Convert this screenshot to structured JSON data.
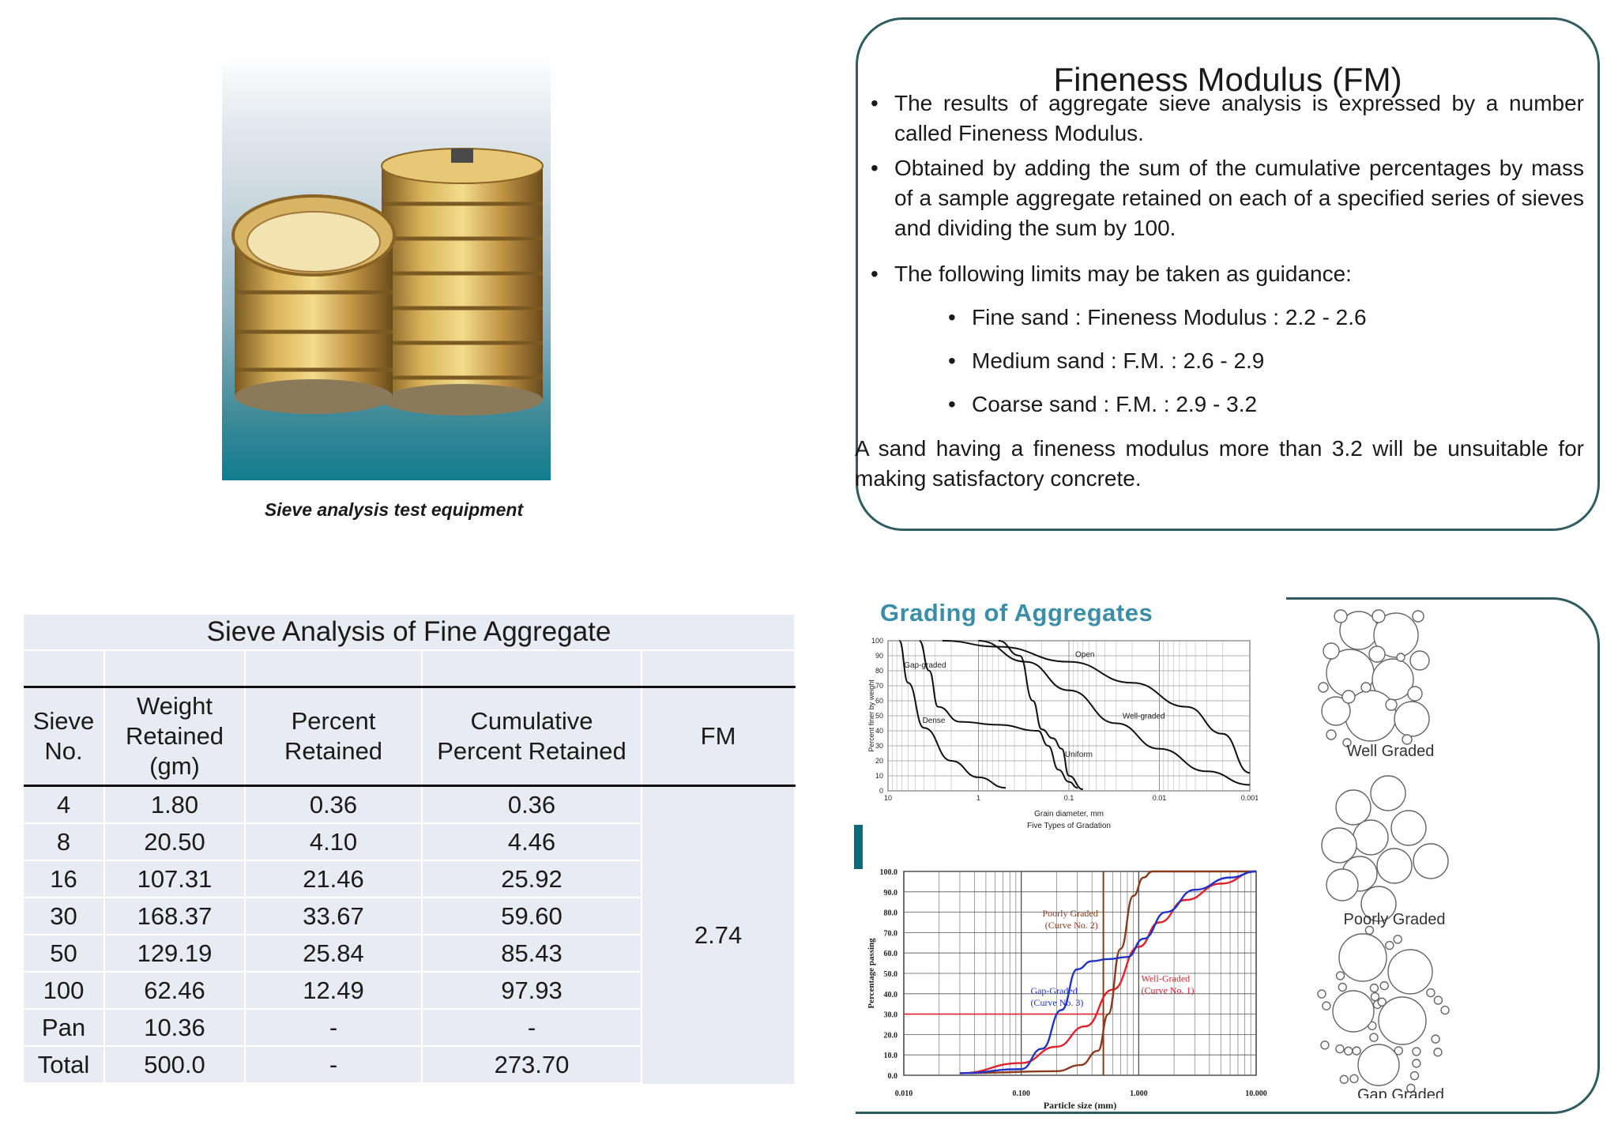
{
  "photo": {
    "caption": "Sieve analysis test equipment"
  },
  "fm": {
    "title": "Fineness Modulus (FM)",
    "bullets": [
      "The results of  aggregate sieve   analysis  is expressed   by   a number called Fineness Modulus.",
      "Obtained by adding the sum of the cumulative percentages by mass of a sample aggregate retained on  each of a specified series of sieves and dividing the sum  by 100.",
      "The following limits may be taken as guidance:"
    ],
    "limits": [
      "Fine sand : Fineness Modulus : 2.2 - 2.6",
      "Medium sand : F.M. : 2.6 - 2.9",
      "Coarse sand : F.M. : 2.9 - 3.2"
    ],
    "note": "A sand having a fineness modulus more than 3.2 will be  unsuitable for making satisfactory concrete."
  },
  "table": {
    "title": "Sieve Analysis of Fine Aggregate",
    "headers": {
      "sieve_1": "Sieve",
      "sieve_2": "No.",
      "weight_1": "Weight",
      "weight_2": "Retained",
      "weight_3": "(gm)",
      "percent_1": "Percent",
      "percent_2": "Retained",
      "cum_1": "Cumulative",
      "cum_2": "Percent Retained",
      "fm": "FM"
    },
    "rows": [
      {
        "sieve": "4",
        "weight": "1.80",
        "percent": "0.36",
        "cumulative": "0.36"
      },
      {
        "sieve": "8",
        "weight": "20.50",
        "percent": "4.10",
        "cumulative": "4.46"
      },
      {
        "sieve": "16",
        "weight": "107.31",
        "percent": "21.46",
        "cumulative": "25.92"
      },
      {
        "sieve": "30",
        "weight": "168.37",
        "percent": "33.67",
        "cumulative": "59.60"
      },
      {
        "sieve": "50",
        "weight": "129.19",
        "percent": "25.84",
        "cumulative": "85.43"
      },
      {
        "sieve": "100",
        "weight": "62.46",
        "percent": "12.49",
        "cumulative": "97.93"
      },
      {
        "sieve": "Pan",
        "weight": "10.36",
        "percent": "-",
        "cumulative": "-"
      },
      {
        "sieve": "Total",
        "weight": "500.0",
        "percent": "-",
        "cumulative": "273.70"
      }
    ],
    "fm_value": "2.74"
  },
  "grading": {
    "title": "Grading of Aggregates",
    "figure_labels": [
      "Well Graded",
      "Poorly Graded",
      "Gap Graded"
    ]
  },
  "chart_data": [
    {
      "type": "line",
      "title": "Five Types of Gradation",
      "xlabel": "Grain diameter, mm",
      "ylabel": "Percent finer by weight",
      "x_scale": "log",
      "x_reversed": true,
      "xlim": [
        10,
        0.001
      ],
      "ylim": [
        0,
        100
      ],
      "x_ticks": [
        "10",
        "1",
        "0.1",
        "0.01",
        "0.001"
      ],
      "y_ticks": [
        "0",
        "10",
        "20",
        "30",
        "40",
        "50",
        "60",
        "70",
        "80",
        "90",
        "100"
      ],
      "grid": true,
      "series": [
        {
          "name": "Open",
          "x": [
            2.5,
            0.6,
            0.1,
            0.02,
            0.005,
            0.002,
            0.001
          ],
          "y": [
            100,
            96,
            86,
            72,
            56,
            38,
            12
          ]
        },
        {
          "name": "Well-graded",
          "x": [
            1.0,
            0.3,
            0.1,
            0.03,
            0.01,
            0.003,
            0.001
          ],
          "y": [
            100,
            86,
            67,
            45,
            28,
            13,
            4
          ]
        },
        {
          "name": "Uniform",
          "x": [
            0.6,
            0.35,
            0.25,
            0.2,
            0.15,
            0.12,
            0.1,
            0.07
          ],
          "y": [
            100,
            90,
            60,
            41,
            35,
            28,
            10,
            1
          ]
        },
        {
          "name": "Gap-graded",
          "x": [
            4.5,
            3.5,
            2.8,
            1.6,
            0.6,
            0.22,
            0.17,
            0.13,
            0.1,
            0.08
          ],
          "y": [
            100,
            80,
            56,
            46,
            44,
            40,
            30,
            14,
            6,
            2
          ]
        },
        {
          "name": "Dense",
          "x": [
            7.5,
            6.0,
            4.0,
            2.0,
            1.0,
            0.5
          ],
          "y": [
            100,
            72,
            42,
            20,
            9,
            2
          ]
        }
      ]
    },
    {
      "type": "line",
      "xlabel": "Particle size (mm)",
      "ylabel": "Percentage passing",
      "x_scale": "log",
      "xlim": [
        0.01,
        10
      ],
      "ylim": [
        0,
        100
      ],
      "x_ticks": [
        "0.010",
        "0.100",
        "1.000",
        "10.000"
      ],
      "y_ticks": [
        "0.0",
        "10.0",
        "20.0",
        "30.0",
        "40.0",
        "50.0",
        "60.0",
        "70.0",
        "80.0",
        "90.0",
        "100.0"
      ],
      "grid": true,
      "annotations": [
        "Poorly Graded (Curve No. 2)",
        "Well-Graded (Curve No. 1)",
        "Gap-Graded (Curve No. 3)"
      ],
      "series": [
        {
          "name": "Well-Graded (Curve No. 1)",
          "color": "#e0202a",
          "x": [
            0.03,
            0.1,
            0.2,
            0.35,
            0.6,
            1.0,
            1.5,
            2.5,
            5.0,
            10.0
          ],
          "y": [
            1,
            6,
            14,
            24,
            42,
            63,
            75,
            86,
            94,
            100
          ]
        },
        {
          "name": "Poorly Graded (Curve No. 2)",
          "color": "#8a3b1c",
          "x": [
            0.03,
            0.2,
            0.32,
            0.45,
            0.55,
            0.7,
            0.9,
            1.1,
            1.3,
            2.0,
            10.0
          ],
          "y": [
            1,
            2,
            5,
            12,
            30,
            62,
            88,
            97,
            100,
            100,
            100
          ]
        },
        {
          "name": "Gap-Graded (Curve No. 3)",
          "color": "#2033c8",
          "x": [
            0.03,
            0.1,
            0.15,
            0.22,
            0.3,
            0.4,
            0.55,
            0.8,
            1.1,
            1.7,
            3.0,
            6.0,
            10.0
          ],
          "y": [
            1,
            3,
            13,
            32,
            52,
            56,
            57,
            58,
            67,
            80,
            91,
            97,
            100
          ]
        }
      ],
      "reference_lines": [
        {
          "y": 30,
          "x_end": 0.5,
          "color": "#e0202a"
        },
        {
          "x": 0.5,
          "color": "#8a3b1c"
        }
      ]
    }
  ]
}
